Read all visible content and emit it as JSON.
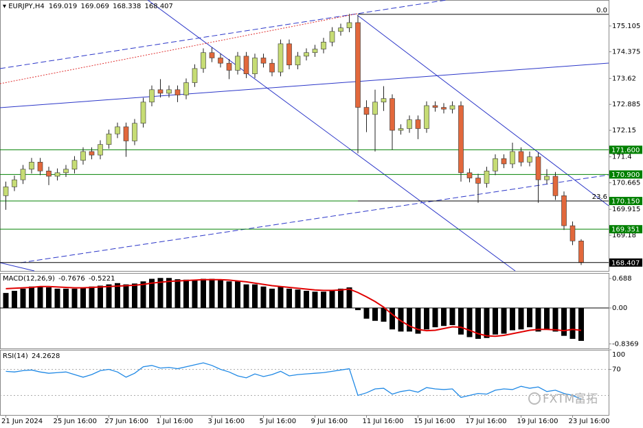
{
  "watermark": "FXTM富拓",
  "chart_data": [
    {
      "type": "candlestick",
      "title": "EURJPY,H4",
      "categories": [
        "21 Jun 2024",
        null,
        null,
        null,
        null,
        null,
        "25 Jun 16:00",
        null,
        null,
        null,
        null,
        null,
        "27 Jun 16:00",
        null,
        null,
        null,
        null,
        null,
        "1 Jul 16:00",
        null,
        null,
        null,
        null,
        null,
        "3 Jul 16:00",
        null,
        null,
        null,
        null,
        null,
        "5 Jul 16:00",
        null,
        null,
        null,
        null,
        null,
        "9 Jul 16:00",
        null,
        null,
        null,
        null,
        null,
        "11 Jul 16:00",
        null,
        null,
        null,
        null,
        null,
        "15 Jul 16:00",
        null,
        null,
        null,
        null,
        null,
        "17 Jul 16:00",
        null,
        null,
        null,
        null,
        null,
        "19 Jul 16:00",
        null,
        null,
        null,
        null,
        null,
        "23 Jul 16:00",
        null
      ],
      "open": [
        170.3,
        170.55,
        170.75,
        171.05,
        171.25,
        171.0,
        170.85,
        170.95,
        171.05,
        171.3,
        171.55,
        171.45,
        171.75,
        172.05,
        172.25,
        171.85,
        172.35,
        172.95,
        173.3,
        173.2,
        173.3,
        173.15,
        173.5,
        173.9,
        174.35,
        174.2,
        174.05,
        173.85,
        174.25,
        173.75,
        174.2,
        174.05,
        173.8,
        174.6,
        174.0,
        174.25,
        174.35,
        174.45,
        174.65,
        174.95,
        175.05,
        175.2,
        172.8,
        172.6,
        172.95,
        173.05,
        172.15,
        172.2,
        172.45,
        172.2,
        172.85,
        172.8,
        172.75,
        172.85,
        170.95,
        170.8,
        170.65,
        171.0,
        171.35,
        171.2,
        171.55,
        171.25,
        171.4,
        170.75,
        170.85,
        170.3,
        169.45,
        169.019
      ],
      "high": [
        170.7,
        170.87,
        171.17,
        171.37,
        171.37,
        171.12,
        171.07,
        171.17,
        171.42,
        171.67,
        171.67,
        171.87,
        172.17,
        172.37,
        172.37,
        172.47,
        173.07,
        173.42,
        173.6,
        173.42,
        173.42,
        173.62,
        174.02,
        174.47,
        174.5,
        174.32,
        174.17,
        174.37,
        174.37,
        174.32,
        174.32,
        174.17,
        174.72,
        174.72,
        174.37,
        174.47,
        174.57,
        174.77,
        175.07,
        175.17,
        175.45,
        175.4,
        173.0,
        173.3,
        173.4,
        173.17,
        172.32,
        172.57,
        172.57,
        172.97,
        172.97,
        172.92,
        172.97,
        172.97,
        171.07,
        170.92,
        171.12,
        171.47,
        171.47,
        171.8,
        171.67,
        171.55,
        171.52,
        171.05,
        170.97,
        170.42,
        169.57,
        169.069
      ],
      "low": [
        169.9,
        170.43,
        170.63,
        170.93,
        170.88,
        170.6,
        170.73,
        170.83,
        170.93,
        171.18,
        171.33,
        171.33,
        171.63,
        171.93,
        171.4,
        171.73,
        172.23,
        172.83,
        173.08,
        173.08,
        172.95,
        173.03,
        173.38,
        173.78,
        174.08,
        173.93,
        173.6,
        173.73,
        173.63,
        173.63,
        173.93,
        173.68,
        173.68,
        173.88,
        173.88,
        174.13,
        174.23,
        174.33,
        174.53,
        174.83,
        174.93,
        171.5,
        172.1,
        171.55,
        172.7,
        171.6,
        172.03,
        172.08,
        171.9,
        172.08,
        172.68,
        172.63,
        172.63,
        170.7,
        170.68,
        170.1,
        170.53,
        170.88,
        171.08,
        171.08,
        171.13,
        171.13,
        170.1,
        170.63,
        170.18,
        169.33,
        168.9,
        168.338
      ],
      "close": [
        170.55,
        170.75,
        171.05,
        171.25,
        171.0,
        170.85,
        170.95,
        171.05,
        171.3,
        171.55,
        171.45,
        171.75,
        172.05,
        172.25,
        171.85,
        172.35,
        172.95,
        173.3,
        173.2,
        173.3,
        173.15,
        173.5,
        173.9,
        174.35,
        174.2,
        174.05,
        173.85,
        174.25,
        173.75,
        174.2,
        174.05,
        173.8,
        174.6,
        174.0,
        174.25,
        174.35,
        174.45,
        174.65,
        174.95,
        175.05,
        175.2,
        172.8,
        172.6,
        172.95,
        173.05,
        172.15,
        172.2,
        172.45,
        172.2,
        172.85,
        172.8,
        172.75,
        172.85,
        170.95,
        170.8,
        170.65,
        171.0,
        171.35,
        171.2,
        171.55,
        171.25,
        171.4,
        170.75,
        170.85,
        170.3,
        169.45,
        169.019,
        168.407
      ],
      "bull_color": "#c6dc74",
      "bear_color": "#e2683c",
      "ylim": [
        168.17,
        175.84
      ],
      "yticks": [
        175.105,
        174.375,
        173.62,
        172.885,
        172.15,
        171.4,
        170.665,
        169.915,
        169.18
      ],
      "levels": [
        {
          "value": 171.6,
          "label": "171.600"
        },
        {
          "value": 170.9,
          "label": "170.900"
        },
        {
          "value": 170.15,
          "label": "170.150"
        },
        {
          "value": 169.351,
          "label": "169.351"
        }
      ],
      "level_color": "#008000",
      "fib_levels": [
        {
          "value": 175.435,
          "label": "0.0"
        },
        {
          "value": 170.15,
          "label": "23.6"
        }
      ]
    },
    {
      "type": "macd",
      "title": "MACD(12,26,9)",
      "histogram": [
        0.35,
        0.4,
        0.45,
        0.5,
        0.5,
        0.48,
        0.45,
        0.45,
        0.45,
        0.48,
        0.5,
        0.52,
        0.55,
        0.58,
        0.55,
        0.57,
        0.62,
        0.68,
        0.7,
        0.7,
        0.67,
        0.66,
        0.66,
        0.68,
        0.68,
        0.66,
        0.62,
        0.62,
        0.55,
        0.55,
        0.5,
        0.45,
        0.5,
        0.45,
        0.43,
        0.4,
        0.38,
        0.38,
        0.42,
        0.45,
        0.48,
        -0.05,
        -0.25,
        -0.3,
        -0.32,
        -0.5,
        -0.55,
        -0.55,
        -0.6,
        -0.5,
        -0.45,
        -0.42,
        -0.4,
        -0.62,
        -0.68,
        -0.72,
        -0.7,
        -0.62,
        -0.6,
        -0.52,
        -0.5,
        -0.45,
        -0.55,
        -0.5,
        -0.55,
        -0.65,
        -0.72,
        -0.7676
      ],
      "signal": [
        0.45,
        0.46,
        0.47,
        0.48,
        0.5,
        0.5,
        0.49,
        0.48,
        0.47,
        0.47,
        0.48,
        0.49,
        0.5,
        0.51,
        0.52,
        0.53,
        0.55,
        0.58,
        0.6,
        0.62,
        0.63,
        0.64,
        0.65,
        0.66,
        0.66,
        0.66,
        0.65,
        0.63,
        0.61,
        0.58,
        0.55,
        0.52,
        0.5,
        0.48,
        0.46,
        0.44,
        0.42,
        0.41,
        0.41,
        0.42,
        0.44,
        0.36,
        0.26,
        0.15,
        0.02,
        -0.15,
        -0.3,
        -0.42,
        -0.5,
        -0.53,
        -0.52,
        -0.48,
        -0.44,
        -0.45,
        -0.52,
        -0.6,
        -0.65,
        -0.66,
        -0.64,
        -0.6,
        -0.56,
        -0.52,
        -0.5,
        -0.5,
        -0.51,
        -0.53,
        -0.5,
        -0.5221
      ],
      "hist_color": "#000000",
      "signal_color": "#e00000",
      "ylim": [
        -0.944,
        0.816
      ],
      "yticks": [
        0.688,
        {
          "value": 0,
          "label": "0.00"
        },
        -0.8369
      ]
    },
    {
      "type": "rsi",
      "title": "RSI(14)",
      "values": [
        67,
        66,
        68,
        69,
        66,
        64,
        65,
        66,
        62,
        58,
        62,
        68,
        70,
        66,
        58,
        64,
        74,
        76,
        72,
        73,
        71,
        74,
        77,
        80,
        76,
        70,
        66,
        60,
        57,
        63,
        59,
        62,
        67,
        60,
        62,
        63,
        64,
        65,
        67,
        69,
        71,
        30,
        34,
        40,
        41,
        32,
        36,
        38,
        35,
        42,
        40,
        39,
        40,
        27,
        30,
        33,
        32,
        38,
        40,
        39,
        44,
        41,
        43,
        36,
        38,
        33,
        30,
        24.2628
      ],
      "color": "#1e88e5",
      "ylim": [
        0,
        100
      ],
      "yticks": [
        100,
        70
      ],
      "levels": [
        70,
        30
      ]
    }
  ]
}
